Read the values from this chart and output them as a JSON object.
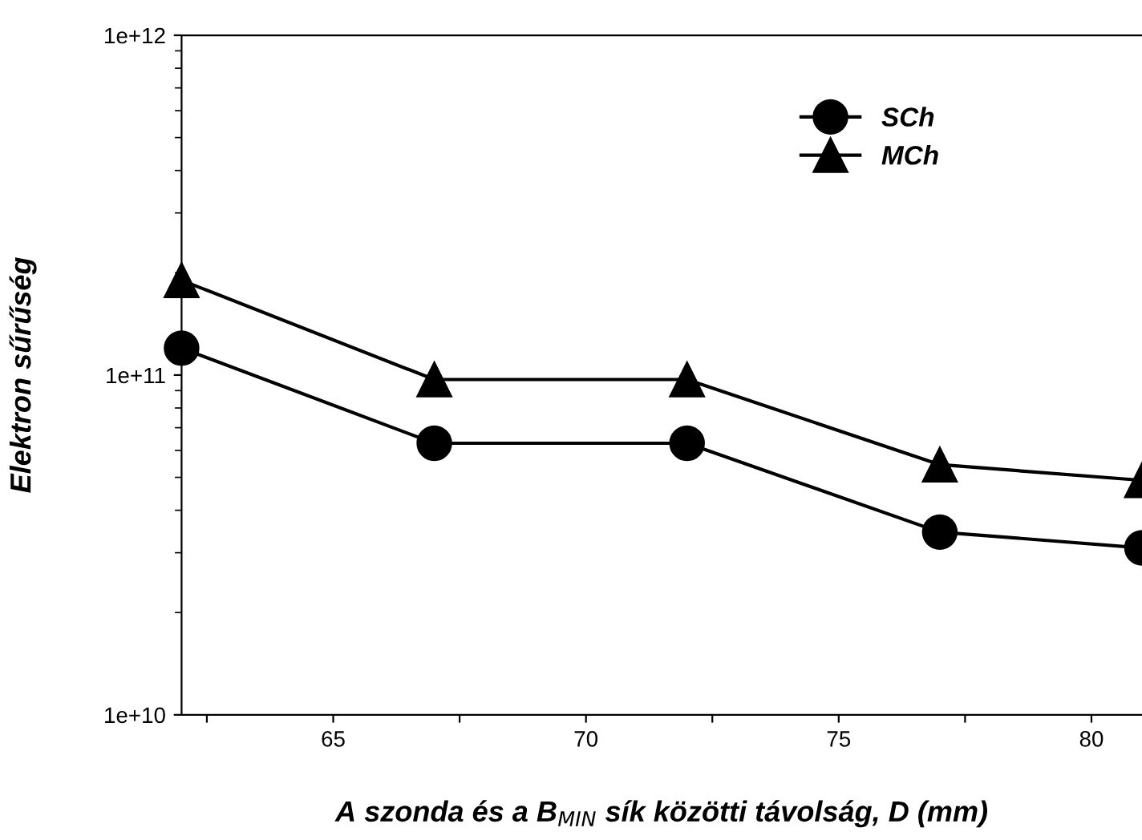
{
  "chart_data": {
    "type": "line",
    "xlabel": "A szonda és a B$_{MIN}$ sík közötti távolság, D (mm)",
    "ylabel": "Elektron sűrűség",
    "x": [
      62,
      67,
      72,
      77,
      81
    ],
    "series": [
      {
        "name": "SCh",
        "color": "#000000",
        "marker": "circle",
        "values": [
          120000000000.0,
          63000000000.0,
          63000000000.0,
          34500000000.0,
          31000000000.0
        ]
      },
      {
        "name": "MCh",
        "color": "#000000",
        "marker": "triangle",
        "values": [
          190000000000.0,
          97000000000.0,
          97000000000.0,
          54500000000.0,
          49000000000.0
        ]
      }
    ],
    "log": "y",
    "xlim": [
      62,
      81
    ],
    "ylim": [
      10000000000.0,
      1000000000000.0
    ],
    "xticks": [
      {
        "value": 62.5,
        "label": null
      },
      65,
      {
        "value": 67.5,
        "label": null
      },
      70,
      {
        "value": 72.5,
        "label": null
      },
      75,
      {
        "value": 77.5,
        "label": null
      },
      80
    ],
    "yticks": [
      {
        "value": 10000000000.0,
        "label": "1e+10"
      },
      {
        "value": 100000000000.0,
        "label": "1e+11"
      },
      {
        "value": 1000000000000.0,
        "label": "1e+12"
      }
    ],
    "grid": false,
    "legend": "top right",
    "line_style": "solid"
  }
}
